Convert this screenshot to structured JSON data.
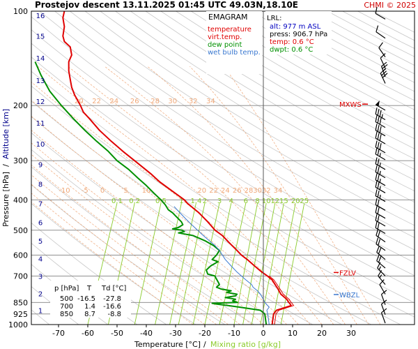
{
  "header": {
    "title": "Prostejov   descent   13.11.2025 01:45 UTC  49.03N,18.10E",
    "copyright": "CHMI © 2025"
  },
  "legend": {
    "title": "EMAGRAM",
    "items": [
      {
        "label": "temperature",
        "color": "#e00000"
      },
      {
        "label": "virt.temp.",
        "color": "#e00000"
      },
      {
        "label": "dew point",
        "color": "#009000"
      },
      {
        "label": "wet bulb temp.",
        "color": "#3a78d0"
      }
    ]
  },
  "lrl": {
    "title": "LRL:",
    "lines": [
      {
        "text": "alt: 977 m ASL",
        "color": "#0000c0"
      },
      {
        "text": "press: 906.7 hPa",
        "color": "#000000"
      },
      {
        "text": "temp: 0.6 °C",
        "color": "#e00000"
      },
      {
        "text": "dwpt: 0.6 °C",
        "color": "#009000"
      }
    ]
  },
  "axes": {
    "ylabel_pressure": "Pressure [hPa]",
    "ylabel_sep": "/",
    "ylabel_altitude": "Altitude [km]",
    "xlabel_temp": "Temperature [°C]",
    "xlabel_sep": "/",
    "xlabel_mix": "Mixing ratio [g/kg]"
  },
  "levels": {
    "mxws": "MXWS",
    "fzlv": "FZLV",
    "wbzl": "WBZL"
  },
  "table": {
    "headers": [
      "p [hPa]",
      "T",
      "Td [°C]"
    ],
    "rows": [
      [
        "500",
        "-16.5",
        "-27.8"
      ],
      [
        "700",
        "1.4",
        "-16.6"
      ],
      [
        "850",
        "8.7",
        "-8.8"
      ]
    ]
  },
  "colors": {
    "temperature": "#e00000",
    "dewpoint": "#009000",
    "wetbulb": "#3a78d0",
    "dry_adiabat": "#c8c8c8",
    "moist_adiabat": "#f0a878",
    "mixing_ratio": "#8acb2a",
    "isobar": "#808080",
    "altitude": "#00008b"
  },
  "chart_data": {
    "type": "line",
    "title": "Prostejov   descent   13.11.2025 01:45 UTC  49.03N,18.10E",
    "xlabel": "Temperature [°C]",
    "ylabel": "Pressure [hPa]",
    "y_scale": "log",
    "xlim": [
      -80,
      40
    ],
    "ylim": [
      1000,
      100
    ],
    "x_ticks": [
      -70,
      -60,
      -50,
      -40,
      -30,
      -20,
      -10,
      0,
      10,
      20,
      30
    ],
    "pressure_ticks": [
      100,
      200,
      300,
      400,
      500,
      600,
      700,
      850,
      925,
      1000
    ],
    "altitude_km_ticks": [
      {
        "km": "1",
        "p": 900
      },
      {
        "km": "2",
        "p": 795
      },
      {
        "km": "3",
        "p": 701
      },
      {
        "km": "4",
        "p": 616
      },
      {
        "km": "5",
        "p": 540
      },
      {
        "km": "6",
        "p": 472
      },
      {
        "km": "7",
        "p": 411
      },
      {
        "km": "8",
        "p": 356
      },
      {
        "km": "9",
        "p": 308
      },
      {
        "km": "10",
        "p": 265
      },
      {
        "km": "11",
        "p": 227
      },
      {
        "km": "12",
        "p": 194
      },
      {
        "km": "13",
        "p": 166
      },
      {
        "km": "14",
        "p": 141
      },
      {
        "km": "15",
        "p": 120
      },
      {
        "km": "16",
        "p": 103
      }
    ],
    "potential_temp_labels": [
      {
        "label": "20",
        "p": 200,
        "T": -63
      },
      {
        "label": "22",
        "p": 200,
        "T": -57
      },
      {
        "label": "24",
        "p": 200,
        "T": -51
      },
      {
        "label": "26",
        "p": 200,
        "T": -44
      },
      {
        "label": "28",
        "p": 200,
        "T": -37
      },
      {
        "label": "30",
        "p": 200,
        "T": -31
      },
      {
        "label": "32",
        "p": 200,
        "T": -24
      },
      {
        "label": "34",
        "p": 200,
        "T": -18
      },
      {
        "label": "-10",
        "p": 385,
        "T": -68
      },
      {
        "label": "-5",
        "p": 385,
        "T": -61
      },
      {
        "label": "0",
        "p": 385,
        "T": -55
      },
      {
        "label": "5",
        "p": 385,
        "T": -47
      },
      {
        "label": "10",
        "p": 385,
        "T": -40
      },
      {
        "label": "20",
        "p": 385,
        "T": -21
      },
      {
        "label": "22",
        "p": 385,
        "T": -17
      },
      {
        "label": "24",
        "p": 385,
        "T": -13
      },
      {
        "label": "26",
        "p": 385,
        "T": -9
      },
      {
        "label": "28",
        "p": 385,
        "T": -5
      },
      {
        "label": "30",
        "p": 385,
        "T": -2
      },
      {
        "label": "32",
        "p": 385,
        "T": 1
      },
      {
        "label": "34",
        "p": 385,
        "T": 5
      }
    ],
    "mixing_ratio_labels": [
      {
        "label": "0.1",
        "p": 410,
        "T": -50
      },
      {
        "label": "0.2",
        "p": 410,
        "T": -44
      },
      {
        "label": "0.5",
        "p": 410,
        "T": -35
      },
      {
        "label": "1",
        "p": 410,
        "T": -28
      },
      {
        "label": "1.4",
        "p": 410,
        "T": -23
      },
      {
        "label": "2",
        "p": 410,
        "T": -20
      },
      {
        "label": "3",
        "p": 410,
        "T": -15
      },
      {
        "label": "4",
        "p": 410,
        "T": -11
      },
      {
        "label": "6",
        "p": 410,
        "T": -6
      },
      {
        "label": "8",
        "p": 410,
        "T": -2
      },
      {
        "label": "10",
        "p": 410,
        "T": 1
      },
      {
        "label": "12",
        "p": 410,
        "T": 4
      },
      {
        "label": "15",
        "p": 410,
        "T": 7
      },
      {
        "label": "20",
        "p": 410,
        "T": 11
      },
      {
        "label": "25",
        "p": 410,
        "T": 14
      }
    ],
    "mixing_ratio_lines": [
      {
        "T_top": -50,
        "T_bottom": -60
      },
      {
        "T_top": -44,
        "T_bottom": -53
      },
      {
        "T_top": -35,
        "T_bottom": -44
      },
      {
        "T_top": -28,
        "T_bottom": -37
      },
      {
        "T_top": -23,
        "T_bottom": -32
      },
      {
        "T_top": -20,
        "T_bottom": -29
      },
      {
        "T_top": -15,
        "T_bottom": -24
      },
      {
        "T_top": -11,
        "T_bottom": -20
      },
      {
        "T_top": -6,
        "T_bottom": -15
      },
      {
        "T_top": -2,
        "T_bottom": -10
      },
      {
        "T_top": 1,
        "T_bottom": -7
      },
      {
        "T_top": 4,
        "T_bottom": -4
      },
      {
        "T_top": 7,
        "T_bottom": -1
      },
      {
        "T_top": 11,
        "T_bottom": 3
      },
      {
        "T_top": 14,
        "T_bottom": 6
      }
    ],
    "series": [
      {
        "name": "temperature",
        "points": [
          [
            1000,
            3.0
          ],
          [
            925,
            3.5
          ],
          [
            900,
            4.5
          ],
          [
            870,
            9.5
          ],
          [
            855,
            9.0
          ],
          [
            850,
            8.7
          ],
          [
            830,
            8.0
          ],
          [
            800,
            6.0
          ],
          [
            770,
            5.0
          ],
          [
            745,
            4.0
          ],
          [
            720,
            3.0
          ],
          [
            700,
            1.4
          ],
          [
            680,
            -0.5
          ],
          [
            650,
            -3.0
          ],
          [
            620,
            -5.5
          ],
          [
            600,
            -7.5
          ],
          [
            580,
            -9.0
          ],
          [
            550,
            -11.5
          ],
          [
            520,
            -14.0
          ],
          [
            500,
            -16.5
          ],
          [
            470,
            -19.0
          ],
          [
            440,
            -22.0
          ],
          [
            410,
            -26.0
          ],
          [
            400,
            -27.0
          ],
          [
            370,
            -32.0
          ],
          [
            350,
            -35.5
          ],
          [
            330,
            -38.5
          ],
          [
            300,
            -44.0
          ],
          [
            280,
            -48.0
          ],
          [
            260,
            -52.0
          ],
          [
            240,
            -56.0
          ],
          [
            220,
            -59.5
          ],
          [
            210,
            -61.5
          ],
          [
            200,
            -62.5
          ],
          [
            185,
            -64.5
          ],
          [
            175,
            -65.5
          ],
          [
            165,
            -66.0
          ],
          [
            155,
            -66.5
          ],
          [
            145,
            -66.5
          ],
          [
            138,
            -65.5
          ],
          [
            130,
            -66.0
          ],
          [
            125,
            -68.0
          ],
          [
            120,
            -68.5
          ],
          [
            112,
            -68.0
          ],
          [
            105,
            -68.5
          ],
          [
            100,
            -68.0
          ]
        ]
      },
      {
        "name": "virt.temp.",
        "points": [
          [
            1000,
            3.8
          ],
          [
            925,
            4.3
          ],
          [
            900,
            5.3
          ],
          [
            870,
            10.3
          ],
          [
            855,
            9.8
          ],
          [
            850,
            9.5
          ],
          [
            830,
            8.8
          ],
          [
            800,
            6.8
          ],
          [
            770,
            5.7
          ],
          [
            745,
            4.7
          ],
          [
            720,
            3.6
          ],
          [
            700,
            2.0
          ]
        ]
      },
      {
        "name": "dew point",
        "points": [
          [
            1000,
            1.0
          ],
          [
            925,
            0.5
          ],
          [
            900,
            -1.0
          ],
          [
            880,
            -8.0
          ],
          [
            870,
            -12.0
          ],
          [
            860,
            -16.0
          ],
          [
            855,
            -17.5
          ],
          [
            850,
            -8.8
          ],
          [
            840,
            -10.5
          ],
          [
            830,
            -9.5
          ],
          [
            820,
            -13.0
          ],
          [
            810,
            -9.5
          ],
          [
            800,
            -9.0
          ],
          [
            790,
            -12.5
          ],
          [
            780,
            -11.0
          ],
          [
            770,
            -14.5
          ],
          [
            760,
            -16.0
          ],
          [
            745,
            -15.0
          ],
          [
            730,
            -15.5
          ],
          [
            700,
            -16.6
          ],
          [
            690,
            -19.0
          ],
          [
            670,
            -19.5
          ],
          [
            650,
            -18.0
          ],
          [
            630,
            -15.5
          ],
          [
            620,
            -17.5
          ],
          [
            600,
            -16.0
          ],
          [
            580,
            -15.0
          ],
          [
            560,
            -17.0
          ],
          [
            540,
            -20.0
          ],
          [
            520,
            -24.0
          ],
          [
            510,
            -29.0
          ],
          [
            505,
            -27.0
          ],
          [
            500,
            -27.8
          ],
          [
            495,
            -31.0
          ],
          [
            490,
            -29.0
          ],
          [
            480,
            -27.5
          ],
          [
            470,
            -28.0
          ],
          [
            460,
            -29.0
          ],
          [
            450,
            -30.0
          ],
          [
            440,
            -31.0
          ],
          [
            430,
            -32.5
          ],
          [
            415,
            -33.5
          ],
          [
            400,
            -35.0
          ],
          [
            380,
            -37.5
          ],
          [
            360,
            -40.0
          ],
          [
            340,
            -43.0
          ],
          [
            320,
            -46.0
          ],
          [
            300,
            -50.0
          ],
          [
            280,
            -53.0
          ],
          [
            260,
            -57.0
          ],
          [
            240,
            -61.0
          ],
          [
            220,
            -65.0
          ],
          [
            200,
            -69.0
          ],
          [
            180,
            -73.0
          ],
          [
            160,
            -76.0
          ],
          [
            145,
            -78.0
          ]
        ]
      },
      {
        "name": "wet bulb temp.",
        "points": [
          [
            1000,
            2.0
          ],
          [
            925,
            1.5
          ],
          [
            900,
            1.2
          ],
          [
            880,
            2.0
          ],
          [
            860,
            1.0
          ],
          [
            850,
            0.5
          ],
          [
            830,
            0.0
          ],
          [
            800,
            -1.0
          ],
          [
            780,
            -2.0
          ],
          [
            760,
            -3.5
          ],
          [
            745,
            -4.0
          ],
          [
            720,
            -6.0
          ],
          [
            700,
            -7.5
          ],
          [
            680,
            -9.0
          ],
          [
            650,
            -11.0
          ],
          [
            620,
            -13.0
          ],
          [
            600,
            -14.0
          ],
          [
            580,
            -15.0
          ],
          [
            560,
            -16.5
          ],
          [
            540,
            -18.5
          ],
          [
            520,
            -20.5
          ],
          [
            500,
            -22.5
          ],
          [
            480,
            -24.5
          ],
          [
            460,
            -26.5
          ],
          [
            440,
            -28.5
          ],
          [
            420,
            -30.5
          ]
        ]
      }
    ],
    "level_markers": [
      {
        "label": "MXWS",
        "p": 198
      },
      {
        "label": "FZLV",
        "p": 682
      },
      {
        "label": "WBZL",
        "p": 802
      }
    ],
    "wind_barbs": [
      {
        "p": 106,
        "dir": 300,
        "speed": 10
      },
      {
        "p": 122,
        "dir": 305,
        "speed": 10
      },
      {
        "p": 140,
        "dir": 325,
        "speed": 10
      },
      {
        "p": 152,
        "dir": 335,
        "speed": 10
      },
      {
        "p": 162,
        "dir": 340,
        "speed": 25
      },
      {
        "p": 170,
        "dir": 335,
        "speed": 30
      },
      {
        "p": 207,
        "dir": 300,
        "speed": 50
      },
      {
        "p": 222,
        "dir": 300,
        "speed": 35
      },
      {
        "p": 235,
        "dir": 300,
        "speed": 30
      },
      {
        "p": 250,
        "dir": 300,
        "speed": 30
      },
      {
        "p": 265,
        "dir": 300,
        "speed": 30
      },
      {
        "p": 283,
        "dir": 300,
        "speed": 30
      },
      {
        "p": 298,
        "dir": 300,
        "speed": 25
      },
      {
        "p": 320,
        "dir": 300,
        "speed": 25
      },
      {
        "p": 340,
        "dir": 300,
        "speed": 25
      },
      {
        "p": 360,
        "dir": 300,
        "speed": 25
      },
      {
        "p": 380,
        "dir": 300,
        "speed": 25
      },
      {
        "p": 405,
        "dir": 300,
        "speed": 25
      },
      {
        "p": 432,
        "dir": 300,
        "speed": 20
      },
      {
        "p": 458,
        "dir": 300,
        "speed": 20
      },
      {
        "p": 485,
        "dir": 300,
        "speed": 20
      },
      {
        "p": 512,
        "dir": 300,
        "speed": 20
      },
      {
        "p": 545,
        "dir": 305,
        "speed": 20
      },
      {
        "p": 580,
        "dir": 305,
        "speed": 20
      },
      {
        "p": 620,
        "dir": 310,
        "speed": 20
      },
      {
        "p": 660,
        "dir": 310,
        "speed": 20
      },
      {
        "p": 700,
        "dir": 315,
        "speed": 15
      },
      {
        "p": 745,
        "dir": 320,
        "speed": 15
      },
      {
        "p": 800,
        "dir": 330,
        "speed": 10
      },
      {
        "p": 865,
        "dir": 340,
        "speed": 10
      },
      {
        "p": 930,
        "dir": 340,
        "speed": 10
      },
      {
        "p": 990,
        "dir": 340,
        "speed": 10
      }
    ]
  }
}
